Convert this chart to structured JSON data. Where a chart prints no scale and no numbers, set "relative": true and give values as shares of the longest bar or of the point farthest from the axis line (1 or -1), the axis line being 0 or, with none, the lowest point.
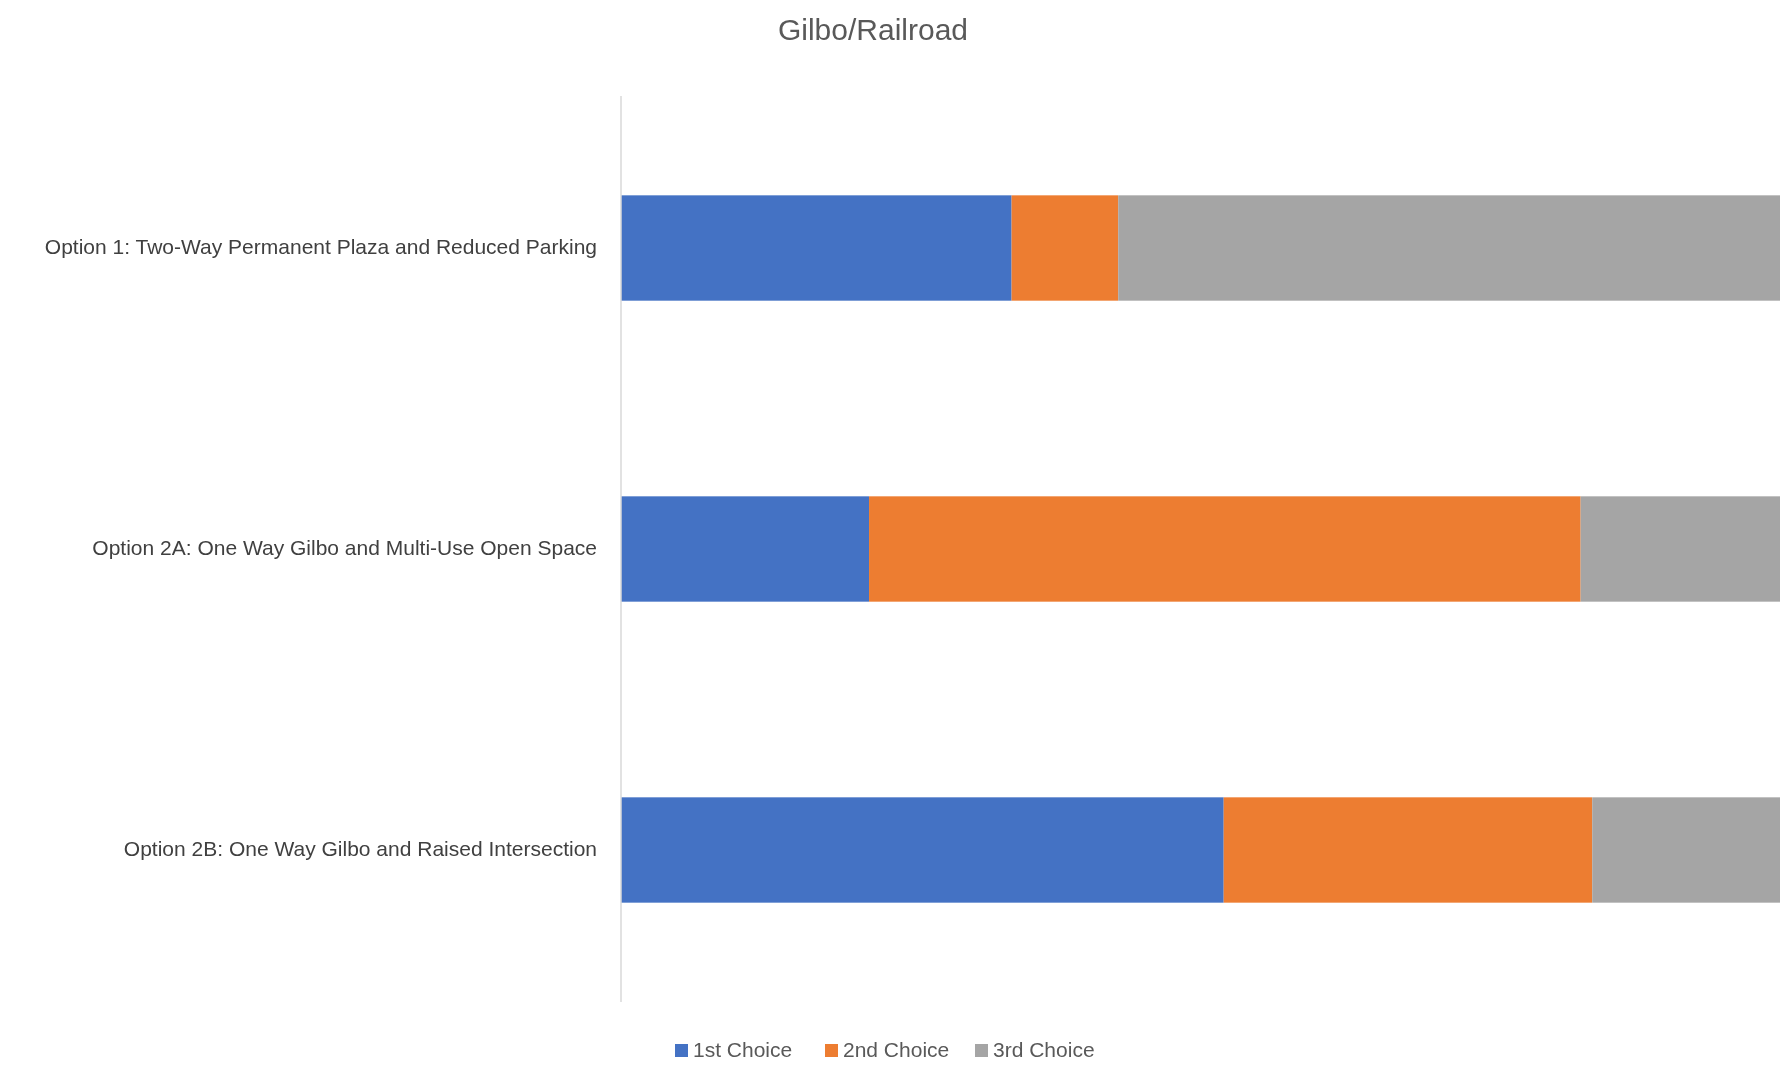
{
  "chart_data": {
    "type": "bar",
    "title": "Gilbo/Railroad",
    "orientation": "horizontal",
    "stacked": true,
    "relative": true,
    "legend": "bottom",
    "categories": [
      "Option 1: Two-Way Permanent Plaza and Reduced Parking",
      "Option 2A: One Way Gilbo and Multi-Use Open Space",
      "Option 2B: One Way Gilbo and Raised Intersection"
    ],
    "series": [
      {
        "name": "1st Choice",
        "color": "#4472c4",
        "values": [
          0.337,
          0.214,
          0.52
        ]
      },
      {
        "name": "2nd Choice",
        "color": "#ed7d31",
        "values": [
          0.092,
          0.614,
          0.318
        ]
      },
      {
        "name": "3rd Choice",
        "color": "#a5a5a5",
        "values": [
          0.571,
          0.172,
          0.162
        ]
      }
    ]
  }
}
